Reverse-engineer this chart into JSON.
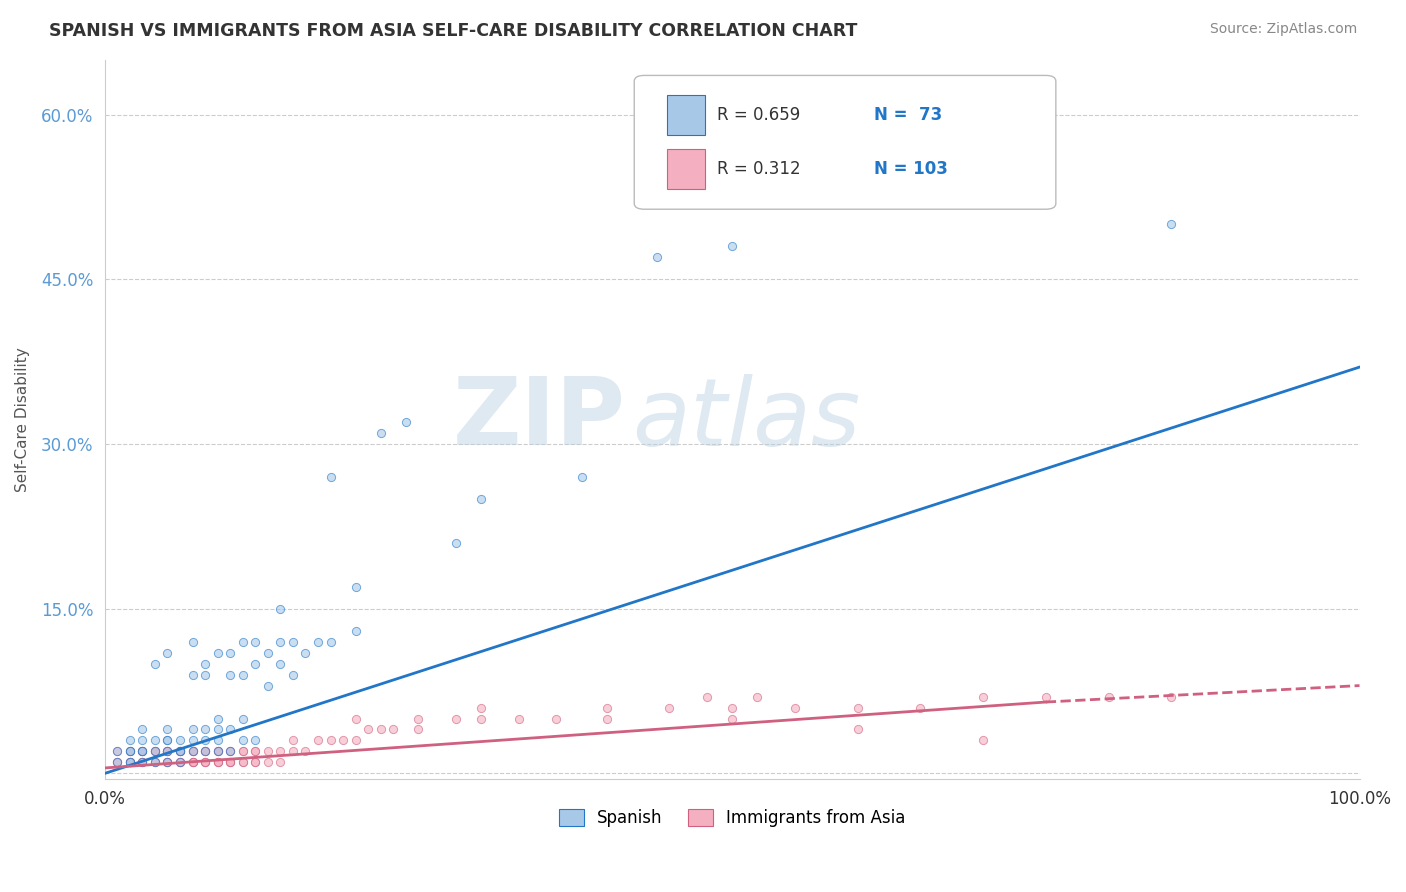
{
  "title": "SPANISH VS IMMIGRANTS FROM ASIA SELF-CARE DISABILITY CORRELATION CHART",
  "source": "Source: ZipAtlas.com",
  "ylabel": "Self-Care Disability",
  "xlim": [
    0.0,
    1.0
  ],
  "ylim": [
    -0.005,
    0.65
  ],
  "yticks": [
    0.0,
    0.15,
    0.3,
    0.45,
    0.6
  ],
  "ytick_labels": [
    "",
    "15.0%",
    "30.0%",
    "45.0%",
    "60.0%"
  ],
  "xticks": [
    0.0,
    1.0
  ],
  "xtick_labels": [
    "0.0%",
    "100.0%"
  ],
  "legend_r1": "R = 0.659",
  "legend_n1": "N =  73",
  "legend_r2": "R = 0.312",
  "legend_n2": "N = 103",
  "color_spanish": "#a8c8e8",
  "color_asia": "#f4b0c0",
  "color_line_spanish": "#2176c7",
  "color_line_asia": "#d06080",
  "watermark_zip": "ZIP",
  "watermark_atlas": "atlas",
  "background_color": "#ffffff",
  "grid_color": "#cccccc",
  "scatter_alpha": 0.6,
  "scatter_size": 35,
  "spanish_x": [
    0.01,
    0.01,
    0.02,
    0.02,
    0.02,
    0.02,
    0.02,
    0.03,
    0.03,
    0.03,
    0.03,
    0.03,
    0.04,
    0.04,
    0.04,
    0.04,
    0.05,
    0.05,
    0.05,
    0.05,
    0.05,
    0.05,
    0.06,
    0.06,
    0.06,
    0.06,
    0.07,
    0.07,
    0.07,
    0.07,
    0.07,
    0.08,
    0.08,
    0.08,
    0.08,
    0.08,
    0.09,
    0.09,
    0.09,
    0.09,
    0.09,
    0.1,
    0.1,
    0.1,
    0.1,
    0.11,
    0.11,
    0.11,
    0.11,
    0.12,
    0.12,
    0.12,
    0.13,
    0.13,
    0.14,
    0.14,
    0.14,
    0.15,
    0.15,
    0.16,
    0.17,
    0.18,
    0.18,
    0.2,
    0.2,
    0.22,
    0.24,
    0.28,
    0.3,
    0.38,
    0.44,
    0.5,
    0.85
  ],
  "spanish_y": [
    0.01,
    0.02,
    0.01,
    0.01,
    0.02,
    0.02,
    0.03,
    0.01,
    0.02,
    0.02,
    0.03,
    0.04,
    0.01,
    0.02,
    0.03,
    0.1,
    0.01,
    0.02,
    0.03,
    0.03,
    0.04,
    0.11,
    0.01,
    0.02,
    0.02,
    0.03,
    0.02,
    0.03,
    0.04,
    0.09,
    0.12,
    0.02,
    0.03,
    0.04,
    0.09,
    0.1,
    0.02,
    0.03,
    0.04,
    0.05,
    0.11,
    0.02,
    0.04,
    0.09,
    0.11,
    0.03,
    0.05,
    0.09,
    0.12,
    0.03,
    0.1,
    0.12,
    0.08,
    0.11,
    0.1,
    0.12,
    0.15,
    0.09,
    0.12,
    0.11,
    0.12,
    0.12,
    0.27,
    0.13,
    0.17,
    0.31,
    0.32,
    0.21,
    0.25,
    0.27,
    0.47,
    0.48,
    0.5
  ],
  "asia_x": [
    0.01,
    0.01,
    0.01,
    0.02,
    0.02,
    0.02,
    0.02,
    0.02,
    0.03,
    0.03,
    0.03,
    0.03,
    0.03,
    0.03,
    0.04,
    0.04,
    0.04,
    0.04,
    0.04,
    0.05,
    0.05,
    0.05,
    0.05,
    0.05,
    0.05,
    0.05,
    0.06,
    0.06,
    0.06,
    0.06,
    0.06,
    0.06,
    0.06,
    0.07,
    0.07,
    0.07,
    0.07,
    0.07,
    0.07,
    0.07,
    0.08,
    0.08,
    0.08,
    0.08,
    0.08,
    0.08,
    0.09,
    0.09,
    0.09,
    0.09,
    0.09,
    0.09,
    0.1,
    0.1,
    0.1,
    0.1,
    0.1,
    0.11,
    0.11,
    0.11,
    0.11,
    0.12,
    0.12,
    0.12,
    0.12,
    0.13,
    0.13,
    0.14,
    0.14,
    0.15,
    0.15,
    0.16,
    0.17,
    0.18,
    0.19,
    0.2,
    0.21,
    0.22,
    0.23,
    0.25,
    0.28,
    0.3,
    0.33,
    0.36,
    0.4,
    0.45,
    0.5,
    0.55,
    0.6,
    0.65,
    0.7,
    0.75,
    0.8,
    0.85,
    0.4,
    0.52,
    0.48,
    0.3,
    0.25,
    0.2,
    0.7,
    0.6,
    0.5
  ],
  "asia_y": [
    0.01,
    0.01,
    0.02,
    0.01,
    0.01,
    0.01,
    0.02,
    0.02,
    0.01,
    0.01,
    0.01,
    0.02,
    0.02,
    0.02,
    0.01,
    0.01,
    0.02,
    0.02,
    0.02,
    0.01,
    0.01,
    0.01,
    0.02,
    0.02,
    0.02,
    0.02,
    0.01,
    0.01,
    0.01,
    0.02,
    0.02,
    0.02,
    0.02,
    0.01,
    0.01,
    0.01,
    0.01,
    0.02,
    0.02,
    0.02,
    0.01,
    0.01,
    0.01,
    0.02,
    0.02,
    0.02,
    0.01,
    0.01,
    0.01,
    0.02,
    0.02,
    0.02,
    0.01,
    0.01,
    0.01,
    0.02,
    0.02,
    0.01,
    0.01,
    0.02,
    0.02,
    0.01,
    0.01,
    0.02,
    0.02,
    0.01,
    0.02,
    0.01,
    0.02,
    0.02,
    0.03,
    0.02,
    0.03,
    0.03,
    0.03,
    0.03,
    0.04,
    0.04,
    0.04,
    0.04,
    0.05,
    0.05,
    0.05,
    0.05,
    0.05,
    0.06,
    0.06,
    0.06,
    0.06,
    0.06,
    0.07,
    0.07,
    0.07,
    0.07,
    0.06,
    0.07,
    0.07,
    0.06,
    0.05,
    0.05,
    0.03,
    0.04,
    0.05
  ],
  "line_sp_x0": 0.0,
  "line_sp_y0": 0.0,
  "line_sp_x1": 1.0,
  "line_sp_y1": 0.37,
  "line_as_solid_x0": 0.0,
  "line_as_solid_y0": 0.005,
  "line_as_solid_x1": 0.75,
  "line_as_solid_y1": 0.065,
  "line_as_dash_x0": 0.75,
  "line_as_dash_y0": 0.065,
  "line_as_dash_x1": 1.0,
  "line_as_dash_y1": 0.08
}
